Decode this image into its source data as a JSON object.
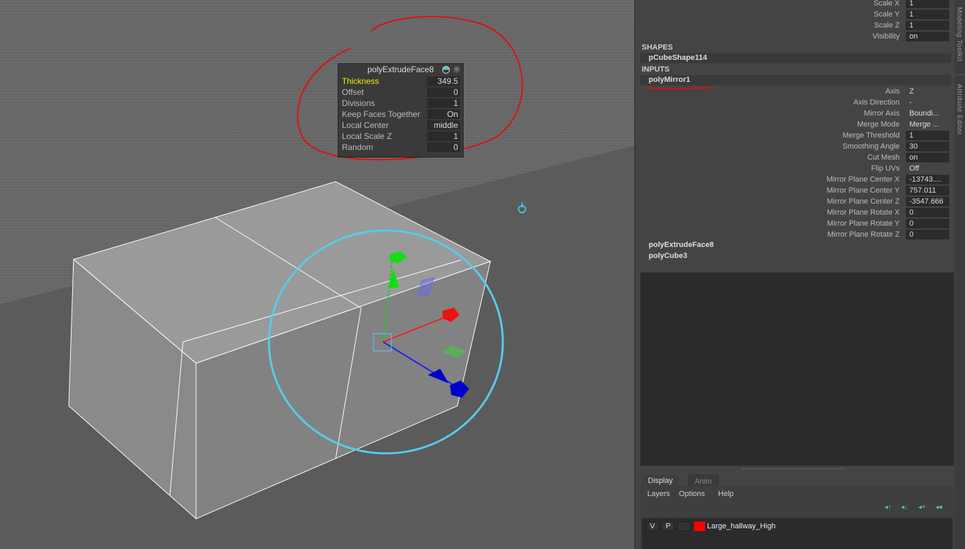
{
  "viewport": {
    "tool_settings": {
      "title": "polyExtrudeFace8",
      "rows": [
        {
          "label": "Thickness",
          "value": "349.5"
        },
        {
          "label": "Offset",
          "value": "0"
        },
        {
          "label": "Divisions",
          "value": "1"
        },
        {
          "label": "Keep Faces Together",
          "value": "On"
        },
        {
          "label": "Local Center",
          "value": "middle"
        },
        {
          "label": "Local Scale Z",
          "value": "1"
        },
        {
          "label": "Random",
          "value": "0"
        }
      ]
    },
    "colors": {
      "highlight": "#f0f000",
      "annotation": "#e01010",
      "manip_circle": "#55ccee"
    }
  },
  "channel_box": {
    "transform_rows": [
      {
        "label": "Scale X",
        "value": "1"
      },
      {
        "label": "Scale Y",
        "value": "1"
      },
      {
        "label": "Scale Z",
        "value": "1"
      },
      {
        "label": "Visibility",
        "value": "on"
      }
    ],
    "shapes_header": "SHAPES",
    "shape": "pCubeShape114",
    "inputs_header": "INPUTS",
    "input": "polyMirror1",
    "input_rows": [
      {
        "label": "Axis",
        "value": "Z"
      },
      {
        "label": "Axis Direction",
        "value": "-"
      },
      {
        "label": "Mirror Axis",
        "value": "Boundi..."
      },
      {
        "label": "Merge Mode",
        "value": "Merge ..."
      },
      {
        "label": "Merge Threshold",
        "value": "1"
      },
      {
        "label": "Smoothing Angle",
        "value": "30"
      },
      {
        "label": "Cut Mesh",
        "value": "on"
      },
      {
        "label": "Flip UVs",
        "value": "Off"
      },
      {
        "label": "Mirror Plane Center X",
        "value": "-13743...."
      },
      {
        "label": "Mirror Plane Center Y",
        "value": "757.011"
      },
      {
        "label": "Mirror Plane Center Z",
        "value": "-3547.666"
      },
      {
        "label": "Mirror Plane Rotate X",
        "value": "0"
      },
      {
        "label": "Mirror Plane Rotate Y",
        "value": "0"
      },
      {
        "label": "Mirror Plane Rotate Z",
        "value": "0"
      }
    ],
    "other_inputs": [
      "polyExtrudeFace8",
      "polyCube3"
    ]
  },
  "layers": {
    "tabs": [
      "Display",
      "Anim"
    ],
    "menu": [
      "Layers",
      "Options",
      "Help"
    ],
    "layer": {
      "v": "V",
      "p": "P",
      "name": "Large_hallway_High",
      "color": "#ff0000"
    }
  },
  "side_tabs": [
    "Modeling Toolkit",
    "Attribute Editor"
  ]
}
